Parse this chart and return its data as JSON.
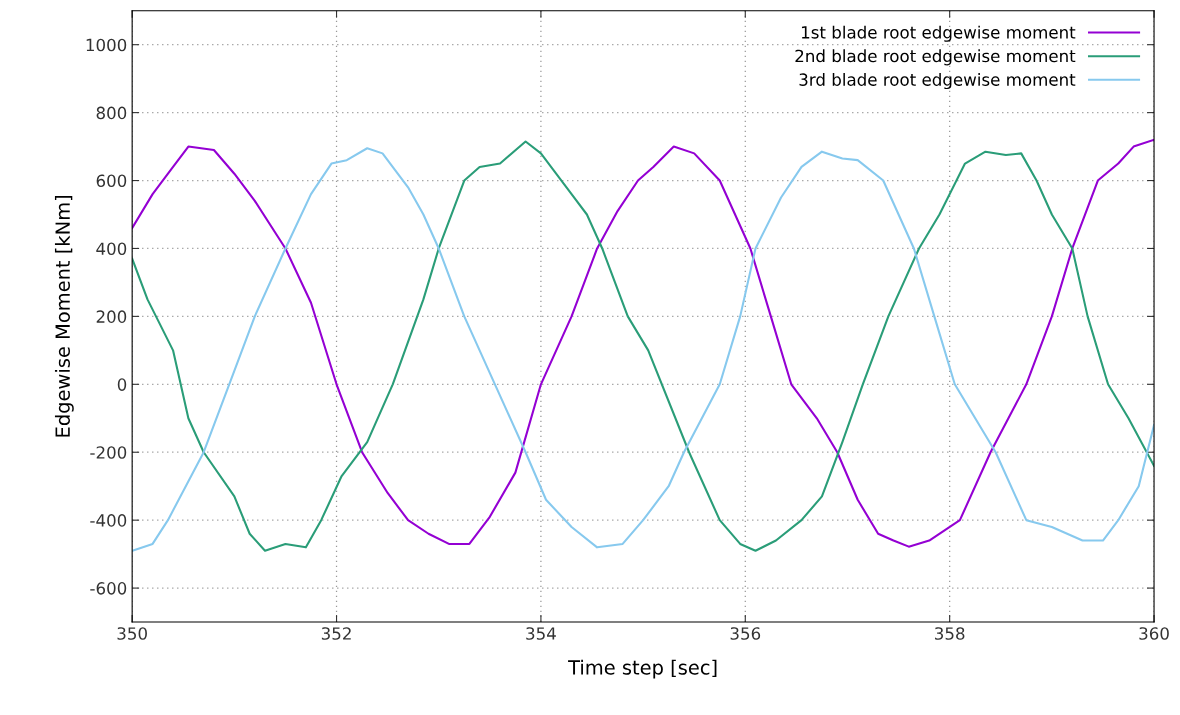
{
  "chart_data": {
    "type": "line",
    "xlabel": "Time step [sec]",
    "ylabel": "Edgewise Moment [kNm]",
    "xlim": [
      350,
      360
    ],
    "xticks": [
      350,
      352,
      354,
      356,
      358,
      360
    ],
    "ylim": [
      -700,
      1100
    ],
    "yticks": [
      -600,
      -400,
      -200,
      0,
      200,
      400,
      600,
      800,
      1000
    ],
    "grid": true,
    "legend": "top right",
    "marker": "none",
    "line_style": "solid",
    "series": [
      {
        "name": "1st blade root edgewise moment",
        "color": "#9400d3",
        "x": [
          350,
          350.2,
          350.4,
          350.55,
          350.8,
          351.0,
          351.2,
          351.5,
          351.75,
          352.0,
          352.25,
          352.5,
          352.7,
          352.9,
          353.1,
          353.3,
          353.5,
          353.75,
          354.0,
          354.3,
          354.55,
          354.75,
          354.95,
          355.1,
          355.3,
          355.5,
          355.75,
          356.05,
          356.25,
          356.45,
          356.7,
          356.9,
          357.1,
          357.3,
          357.45,
          357.6,
          357.8,
          358.1,
          358.4,
          358.75,
          359.0,
          359.2,
          359.45,
          359.65,
          359.8,
          360
        ],
        "values": [
          460,
          560,
          640,
          700,
          690,
          620,
          540,
          400,
          240,
          0,
          -200,
          -320,
          -400,
          -440,
          -470,
          -470,
          -390,
          -260,
          0,
          200,
          400,
          510,
          600,
          640,
          700,
          680,
          600,
          400,
          200,
          0,
          -100,
          -200,
          -340,
          -440,
          -460,
          -478,
          -460,
          -400,
          -200,
          0,
          200,
          400,
          600,
          650,
          700,
          720
        ]
      },
      {
        "name": "2nd blade root edgewise moment",
        "color": "#2a9d78",
        "x": [
          350,
          350.15,
          350.4,
          350.55,
          350.7,
          351.0,
          351.15,
          351.3,
          351.5,
          351.7,
          351.85,
          352.05,
          352.3,
          352.55,
          352.85,
          353.0,
          353.25,
          353.4,
          353.6,
          353.85,
          354.0,
          354.3,
          354.45,
          354.6,
          354.85,
          355.05,
          355.45,
          355.75,
          355.95,
          356.1,
          356.3,
          356.55,
          356.75,
          356.95,
          357.15,
          357.4,
          357.7,
          357.9,
          358.15,
          358.35,
          358.55,
          358.7,
          358.85,
          359.0,
          359.2,
          359.35,
          359.55,
          359.75,
          360
        ],
        "values": [
          370,
          250,
          100,
          -100,
          -200,
          -330,
          -440,
          -490,
          -470,
          -480,
          -400,
          -270,
          -170,
          0,
          250,
          400,
          600,
          640,
          650,
          715,
          680,
          560,
          500,
          400,
          200,
          100,
          -200,
          -400,
          -470,
          -490,
          -460,
          -400,
          -330,
          -170,
          0,
          200,
          400,
          500,
          650,
          685,
          675,
          680,
          600,
          500,
          400,
          200,
          0,
          -100,
          -240
        ]
      },
      {
        "name": "3rd blade root edgewise moment",
        "color": "#87c9ee",
        "x": [
          350,
          350.2,
          350.35,
          350.7,
          350.95,
          351.2,
          351.5,
          351.75,
          351.95,
          352.1,
          352.3,
          352.45,
          352.7,
          352.85,
          353.0,
          353.25,
          353.55,
          353.85,
          354.05,
          354.3,
          354.55,
          354.8,
          355.0,
          355.25,
          355.4,
          355.75,
          355.95,
          356.1,
          356.35,
          356.55,
          356.75,
          356.95,
          357.1,
          357.35,
          357.65,
          357.85,
          358.05,
          358.45,
          358.75,
          359.0,
          359.3,
          359.5,
          359.65,
          359.85,
          360
        ],
        "values": [
          -490,
          -470,
          -400,
          -200,
          0,
          200,
          400,
          560,
          650,
          660,
          695,
          680,
          580,
          500,
          400,
          200,
          0,
          -200,
          -340,
          -420,
          -480,
          -470,
          -400,
          -300,
          -200,
          0,
          200,
          400,
          550,
          640,
          685,
          665,
          660,
          600,
          400,
          200,
          0,
          -200,
          -400,
          -420,
          -460,
          -460,
          -400,
          -300,
          -120
        ]
      }
    ]
  }
}
